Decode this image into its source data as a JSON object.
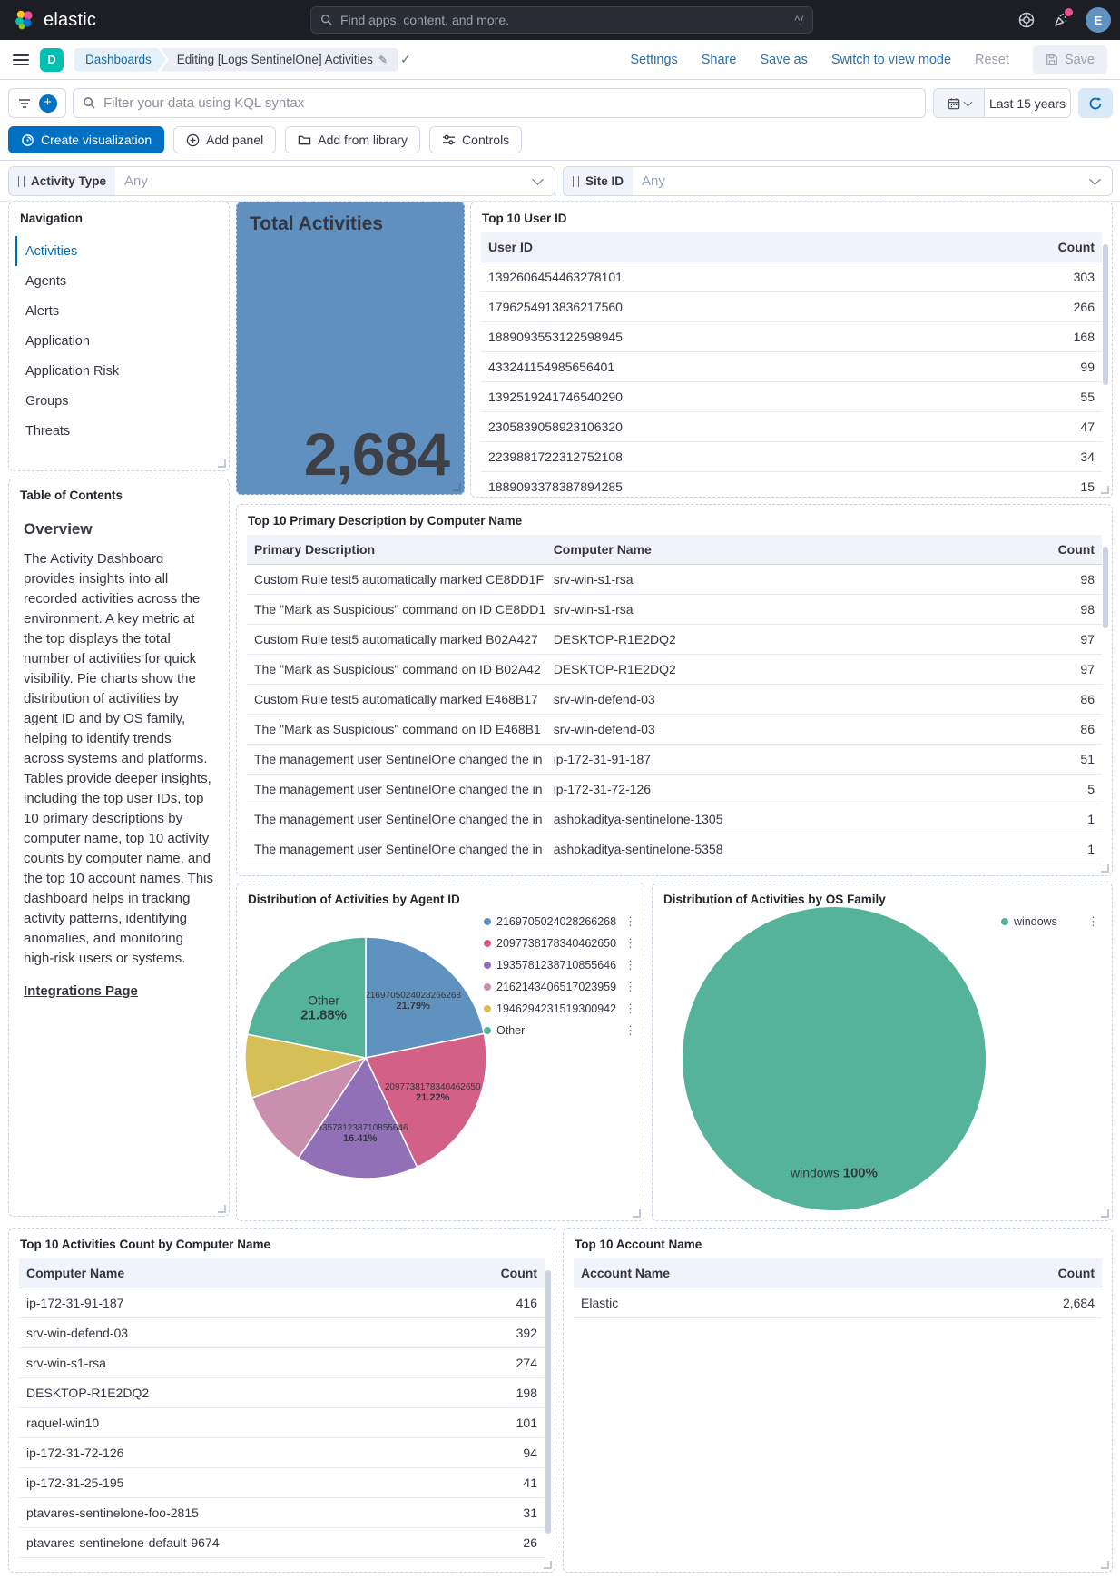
{
  "header": {
    "brand": "elastic",
    "search_placeholder": "Find apps, content, and more.",
    "shortcut_hint": "^/",
    "avatar_initial": "E"
  },
  "nav_bar": {
    "space_badge": "D",
    "breadcrumb_root": "Dashboards",
    "breadcrumb_current": "Editing [Logs SentinelOne] Activities",
    "links": {
      "settings": "Settings",
      "share": "Share",
      "save_as": "Save as",
      "switch_view": "Switch to view mode"
    },
    "reset_label": "Reset",
    "save_label": "Save"
  },
  "query_bar": {
    "placeholder": "Filter your data using KQL syntax",
    "time_range": "Last 15 years"
  },
  "toolbar": {
    "create_visualization": "Create visualization",
    "add_panel": "Add panel",
    "add_from_library": "Add from library",
    "controls": "Controls"
  },
  "controls": [
    {
      "label": "Activity Type",
      "value": "Any"
    },
    {
      "label": "Site ID",
      "value": "Any"
    }
  ],
  "panels": {
    "navigation": {
      "title": "Navigation",
      "items": [
        "Activities",
        "Agents",
        "Alerts",
        "Application",
        "Application Risk",
        "Groups",
        "Threats"
      ],
      "active_item": "Activities"
    },
    "total_activities": {
      "title": "Total Activities",
      "value": "2,684"
    },
    "top_user_id": {
      "title": "Top 10 User ID",
      "columns": [
        "User ID",
        "Count"
      ],
      "rows": [
        [
          "1392606454463278101",
          "303"
        ],
        [
          "1796254913836217560",
          "266"
        ],
        [
          "1889093553122598945",
          "168"
        ],
        [
          "433241154985656401",
          "99"
        ],
        [
          "1392519241746540290",
          "55"
        ],
        [
          "2305839058923106320",
          "47"
        ],
        [
          "2239881722312752108",
          "34"
        ],
        [
          "1889093378387894285",
          "15"
        ]
      ]
    },
    "toc": {
      "title": "Table of Contents",
      "heading": "Overview",
      "body": "The Activity Dashboard provides insights into all recorded activities across the environment. A key metric at the top displays the total number of activities for quick visibility. Pie charts show the distribution of activities by agent ID and by OS family, helping to identify trends across systems and platforms. Tables provide deeper insights, including the top user IDs, top 10 primary descriptions by computer name, top 10 activity counts by computer name, and the top 10 account names. This dashboard helps in tracking activity patterns, identifying anomalies, and monitoring high-risk users or systems.",
      "link": "Integrations Page"
    },
    "primary_desc": {
      "title": "Top 10 Primary Description by Computer Name",
      "columns": [
        "Primary Description",
        "Computer Name",
        "Count"
      ],
      "rows": [
        [
          "Custom Rule test5 automatically marked CE8DD1F",
          "srv-win-s1-rsa",
          "98"
        ],
        [
          "The \"Mark as Suspicious\" command on ID CE8DD1",
          "srv-win-s1-rsa",
          "98"
        ],
        [
          "Custom Rule test5 automatically marked B02A427",
          "DESKTOP-R1E2DQ2",
          "97"
        ],
        [
          "The \"Mark as Suspicious\" command on ID B02A42",
          "DESKTOP-R1E2DQ2",
          "97"
        ],
        [
          "Custom Rule test5 automatically marked E468B17",
          "srv-win-defend-03",
          "86"
        ],
        [
          "The \"Mark as Suspicious\" command on ID E468B1",
          "srv-win-defend-03",
          "86"
        ],
        [
          "The management user SentinelOne changed the in",
          "ip-172-31-91-187",
          "51"
        ],
        [
          "The management user SentinelOne changed the in",
          "ip-172-31-72-126",
          "5"
        ],
        [
          "The management user SentinelOne changed the in",
          "ashokaditya-sentinelone-1305",
          "1"
        ],
        [
          "The management user SentinelOne changed the in",
          "ashokaditya-sentinelone-5358",
          "1"
        ]
      ]
    },
    "top_computer": {
      "title": "Top 10 Activities Count by Computer Name",
      "columns": [
        "Computer Name",
        "Count"
      ],
      "rows": [
        [
          "ip-172-31-91-187",
          "416"
        ],
        [
          "srv-win-defend-03",
          "392"
        ],
        [
          "srv-win-s1-rsa",
          "274"
        ],
        [
          "DESKTOP-R1E2DQ2",
          "198"
        ],
        [
          "raquel-win10",
          "101"
        ],
        [
          "ip-172-31-72-126",
          "94"
        ],
        [
          "ip-172-31-25-195",
          "41"
        ],
        [
          "ptavares-sentinelone-foo-2815",
          "31"
        ],
        [
          "ptavares-sentinelone-default-9674",
          "26"
        ]
      ]
    },
    "top_account": {
      "title": "Top 10 Account Name",
      "columns": [
        "Account Name",
        "Count"
      ],
      "rows": [
        [
          "Elastic",
          "2,684"
        ]
      ]
    }
  },
  "chart_data": [
    {
      "type": "pie",
      "title": "Distribution of Activities by Agent ID",
      "legend_position": "right",
      "slices": [
        {
          "label": "2169705024028266268",
          "pct": 21.79,
          "color": "#6092C0",
          "show_label": true
        },
        {
          "label": "2097738178340462650",
          "pct": 21.22,
          "color": "#D36086",
          "show_label": true
        },
        {
          "label": "1935781238710855646",
          "pct": 16.41,
          "color": "#9170B8",
          "show_label": true
        },
        {
          "label": "2162143406517023959",
          "pct": 10.2,
          "color": "#CA8EAE",
          "show_label": false
        },
        {
          "label": "1946294231519300942",
          "pct": 8.5,
          "color": "#D6BF57",
          "show_label": false
        },
        {
          "label": "Other",
          "pct": 21.88,
          "color": "#54B399",
          "show_label": true
        }
      ]
    },
    {
      "type": "pie",
      "title": "Distribution of Activities by OS Family",
      "legend_position": "right",
      "slices": [
        {
          "label": "windows",
          "pct": 100,
          "color": "#54B399",
          "show_label": true
        }
      ]
    }
  ]
}
